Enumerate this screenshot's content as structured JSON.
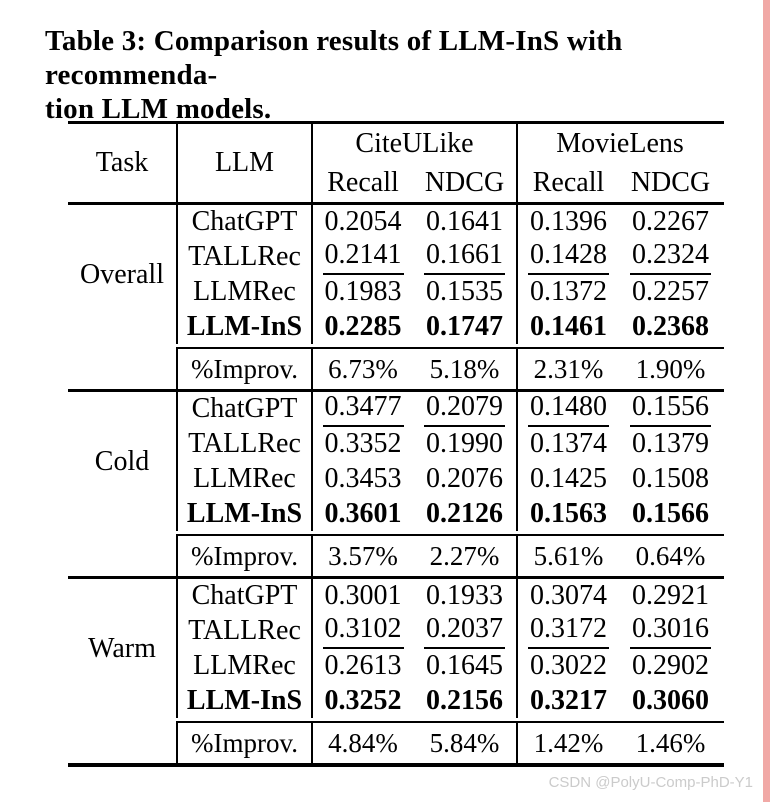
{
  "title": {
    "lines": [
      "Table 3: Comparison results of LLM-InS with recommenda-",
      "tion LLM models."
    ]
  },
  "watermark": "CSDN @PolyU-Comp-PhD-Y1",
  "colors": {
    "accent_strip": "#f1a9a6",
    "watermark_gray": "#cbcbcb",
    "rule_black": "#000000"
  },
  "table": {
    "header": {
      "task": "Task",
      "llm": "LLM",
      "groups": [
        {
          "name": "CiteULike",
          "metrics": [
            "Recall",
            "NDCG"
          ]
        },
        {
          "name": "MovieLens",
          "metrics": [
            "Recall",
            "NDCG"
          ]
        }
      ]
    },
    "sections": [
      {
        "task": "Overall",
        "rows": [
          {
            "llm": "ChatGPT",
            "emphasis": "none",
            "values": [
              "0.2054",
              "0.1641",
              "0.1396",
              "0.2267"
            ]
          },
          {
            "llm": "TALLRec",
            "emphasis": "underline",
            "values": [
              "0.2141",
              "0.1661",
              "0.1428",
              "0.2324"
            ]
          },
          {
            "llm": "LLMRec",
            "emphasis": "none",
            "values": [
              "0.1983",
              "0.1535",
              "0.1372",
              "0.2257"
            ]
          },
          {
            "llm": "LLM-InS",
            "emphasis": "bold",
            "values": [
              "0.2285",
              "0.1747",
              "0.1461",
              "0.2368"
            ]
          }
        ],
        "improv": {
          "label": "%Improv.",
          "values": [
            "6.73%",
            "5.18%",
            "2.31%",
            "1.90%"
          ]
        }
      },
      {
        "task": "Cold",
        "rows": [
          {
            "llm": "ChatGPT",
            "emphasis": "underline",
            "values": [
              "0.3477",
              "0.2079",
              "0.1480",
              "0.1556"
            ]
          },
          {
            "llm": "TALLRec",
            "emphasis": "none",
            "values": [
              "0.3352",
              "0.1990",
              "0.1374",
              "0.1379"
            ]
          },
          {
            "llm": "LLMRec",
            "emphasis": "none",
            "values": [
              "0.3453",
              "0.2076",
              "0.1425",
              "0.1508"
            ]
          },
          {
            "llm": "LLM-InS",
            "emphasis": "bold",
            "values": [
              "0.3601",
              "0.2126",
              "0.1563",
              "0.1566"
            ]
          }
        ],
        "improv": {
          "label": "%Improv.",
          "values": [
            "3.57%",
            "2.27%",
            "5.61%",
            "0.64%"
          ]
        }
      },
      {
        "task": "Warm",
        "rows": [
          {
            "llm": "ChatGPT",
            "emphasis": "none",
            "values": [
              "0.3001",
              "0.1933",
              "0.3074",
              "0.2921"
            ]
          },
          {
            "llm": "TALLRec",
            "emphasis": "underline",
            "values": [
              "0.3102",
              "0.2037",
              "0.3172",
              "0.3016"
            ]
          },
          {
            "llm": "LLMRec",
            "emphasis": "none",
            "values": [
              "0.2613",
              "0.1645",
              "0.3022",
              "0.2902"
            ]
          },
          {
            "llm": "LLM-InS",
            "emphasis": "bold",
            "values": [
              "0.3252",
              "0.2156",
              "0.3217",
              "0.3060"
            ]
          }
        ],
        "improv": {
          "label": "%Improv.",
          "values": [
            "4.84%",
            "5.84%",
            "1.42%",
            "1.46%"
          ]
        }
      }
    ]
  }
}
